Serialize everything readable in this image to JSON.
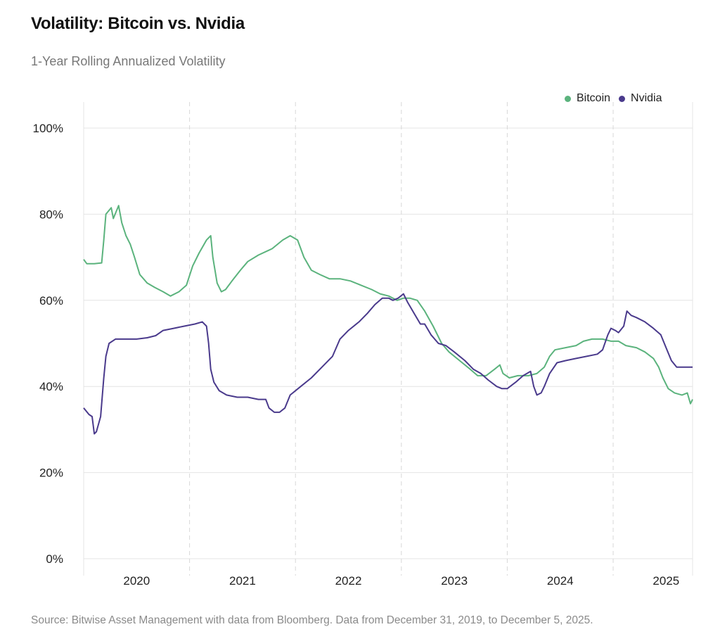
{
  "title": "Volatility: Bitcoin vs. Nvidia",
  "subtitle": "1-Year Rolling Annualized Volatility",
  "source": "Source: Bitwise Asset Management with data from Bloomberg. Data from December 31, 2019, to December 5, 2025.",
  "colors": {
    "bitcoin": "#5bb37d",
    "nvidia": "#4a3a8c",
    "grid": "#e4e4e4",
    "year_grid": "#d8d8d8"
  },
  "chart_data": {
    "type": "line",
    "title": "Volatility: Bitcoin vs. Nvidia",
    "subtitle": "1-Year Rolling Annualized Volatility",
    "xlabel": "",
    "ylabel": "",
    "ylim": [
      0,
      100
    ],
    "xlim": [
      2019.5,
      2025.25
    ],
    "y_ticks": [
      0,
      20,
      40,
      60,
      80,
      100
    ],
    "y_tick_labels": [
      "0%",
      "20%",
      "40%",
      "60%",
      "80%",
      "100%"
    ],
    "year_boundaries": [
      2020.5,
      2021.5,
      2022.5,
      2023.5,
      2024.5
    ],
    "x_ticks": [
      2020,
      2021,
      2022,
      2023,
      2024,
      2025
    ],
    "x_tick_labels": [
      "2020",
      "2021",
      "2022",
      "2023",
      "2024",
      "2025"
    ],
    "legend_position": "top-right",
    "series": [
      {
        "name": "Bitcoin",
        "color": "#5bb37d",
        "points": [
          [
            2019.5,
            69.5
          ],
          [
            2019.53,
            68.5
          ],
          [
            2019.6,
            68.5
          ],
          [
            2019.67,
            68.7
          ],
          [
            2019.69,
            74
          ],
          [
            2019.71,
            80
          ],
          [
            2019.76,
            81.5
          ],
          [
            2019.78,
            79
          ],
          [
            2019.83,
            82
          ],
          [
            2019.86,
            78
          ],
          [
            2019.9,
            75
          ],
          [
            2019.94,
            73
          ],
          [
            2019.98,
            70
          ],
          [
            2020.03,
            66
          ],
          [
            2020.1,
            64
          ],
          [
            2020.17,
            63
          ],
          [
            2020.25,
            62
          ],
          [
            2020.32,
            61
          ],
          [
            2020.4,
            62
          ],
          [
            2020.47,
            63.5
          ],
          [
            2020.53,
            68
          ],
          [
            2020.59,
            71
          ],
          [
            2020.66,
            74
          ],
          [
            2020.7,
            75
          ],
          [
            2020.72,
            70
          ],
          [
            2020.76,
            64
          ],
          [
            2020.8,
            62
          ],
          [
            2020.84,
            62.5
          ],
          [
            2020.9,
            64.5
          ],
          [
            2020.98,
            67
          ],
          [
            2021.05,
            69
          ],
          [
            2021.15,
            70.5
          ],
          [
            2021.28,
            72
          ],
          [
            2021.38,
            74
          ],
          [
            2021.45,
            75
          ],
          [
            2021.52,
            74
          ],
          [
            2021.58,
            70
          ],
          [
            2021.65,
            67
          ],
          [
            2021.73,
            66
          ],
          [
            2021.82,
            65
          ],
          [
            2021.92,
            65
          ],
          [
            2022.02,
            64.5
          ],
          [
            2022.12,
            63.5
          ],
          [
            2022.22,
            62.5
          ],
          [
            2022.3,
            61.5
          ],
          [
            2022.38,
            61
          ],
          [
            2022.46,
            60
          ],
          [
            2022.52,
            60.5
          ],
          [
            2022.58,
            60.5
          ],
          [
            2022.65,
            60
          ],
          [
            2022.72,
            57.5
          ],
          [
            2022.8,
            54
          ],
          [
            2022.88,
            50
          ],
          [
            2022.95,
            48
          ],
          [
            2023.05,
            46
          ],
          [
            2023.15,
            44
          ],
          [
            2023.22,
            42.5
          ],
          [
            2023.3,
            42.5
          ],
          [
            2023.38,
            44
          ],
          [
            2023.43,
            45
          ],
          [
            2023.46,
            43
          ],
          [
            2023.52,
            42
          ],
          [
            2023.6,
            42.5
          ],
          [
            2023.7,
            42.5
          ],
          [
            2023.78,
            43
          ],
          [
            2023.85,
            44.5
          ],
          [
            2023.9,
            47
          ],
          [
            2023.95,
            48.5
          ],
          [
            2024.05,
            49
          ],
          [
            2024.15,
            49.5
          ],
          [
            2024.22,
            50.5
          ],
          [
            2024.3,
            51
          ],
          [
            2024.4,
            51
          ],
          [
            2024.48,
            50.5
          ],
          [
            2024.55,
            50.5
          ],
          [
            2024.62,
            49.5
          ],
          [
            2024.72,
            49
          ],
          [
            2024.8,
            48
          ],
          [
            2024.88,
            46.5
          ],
          [
            2024.93,
            44.5
          ],
          [
            2024.97,
            42
          ],
          [
            2025.02,
            39.5
          ],
          [
            2025.08,
            38.5
          ],
          [
            2025.15,
            38
          ],
          [
            2025.2,
            38.5
          ],
          [
            2025.23,
            36
          ],
          [
            2025.25,
            37
          ]
        ]
      },
      {
        "name": "Nvidia",
        "color": "#4a3a8c",
        "points": [
          [
            2019.5,
            35
          ],
          [
            2019.55,
            33.5
          ],
          [
            2019.58,
            33
          ],
          [
            2019.6,
            29
          ],
          [
            2019.62,
            29.5
          ],
          [
            2019.66,
            33
          ],
          [
            2019.69,
            42
          ],
          [
            2019.71,
            47
          ],
          [
            2019.74,
            50
          ],
          [
            2019.8,
            51
          ],
          [
            2019.9,
            51
          ],
          [
            2020.0,
            51
          ],
          [
            2020.1,
            51.3
          ],
          [
            2020.18,
            51.8
          ],
          [
            2020.25,
            53
          ],
          [
            2020.35,
            53.5
          ],
          [
            2020.45,
            54
          ],
          [
            2020.55,
            54.5
          ],
          [
            2020.62,
            55
          ],
          [
            2020.66,
            54
          ],
          [
            2020.68,
            50
          ],
          [
            2020.7,
            44
          ],
          [
            2020.73,
            41
          ],
          [
            2020.78,
            39
          ],
          [
            2020.85,
            38
          ],
          [
            2020.95,
            37.5
          ],
          [
            2021.05,
            37.5
          ],
          [
            2021.15,
            37
          ],
          [
            2021.22,
            37
          ],
          [
            2021.25,
            35
          ],
          [
            2021.3,
            34
          ],
          [
            2021.35,
            34
          ],
          [
            2021.4,
            35
          ],
          [
            2021.45,
            38
          ],
          [
            2021.55,
            40
          ],
          [
            2021.65,
            42
          ],
          [
            2021.75,
            44.5
          ],
          [
            2021.85,
            47
          ],
          [
            2021.92,
            51
          ],
          [
            2022.0,
            53
          ],
          [
            2022.1,
            55
          ],
          [
            2022.18,
            57
          ],
          [
            2022.25,
            59
          ],
          [
            2022.32,
            60.5
          ],
          [
            2022.38,
            60.5
          ],
          [
            2022.42,
            60
          ],
          [
            2022.47,
            60.5
          ],
          [
            2022.52,
            61.5
          ],
          [
            2022.56,
            59.5
          ],
          [
            2022.62,
            57
          ],
          [
            2022.68,
            54.5
          ],
          [
            2022.72,
            54.5
          ],
          [
            2022.78,
            52
          ],
          [
            2022.85,
            50
          ],
          [
            2022.92,
            49.5
          ],
          [
            2023.0,
            48
          ],
          [
            2023.1,
            46
          ],
          [
            2023.18,
            44
          ],
          [
            2023.25,
            43
          ],
          [
            2023.32,
            41.5
          ],
          [
            2023.4,
            40
          ],
          [
            2023.45,
            39.5
          ],
          [
            2023.5,
            39.5
          ],
          [
            2023.58,
            41
          ],
          [
            2023.65,
            42.5
          ],
          [
            2023.72,
            43.5
          ],
          [
            2023.75,
            40
          ],
          [
            2023.78,
            38
          ],
          [
            2023.82,
            38.5
          ],
          [
            2023.85,
            40
          ],
          [
            2023.9,
            43
          ],
          [
            2023.97,
            45.5
          ],
          [
            2024.05,
            46
          ],
          [
            2024.15,
            46.5
          ],
          [
            2024.25,
            47
          ],
          [
            2024.35,
            47.5
          ],
          [
            2024.4,
            48.5
          ],
          [
            2024.45,
            52
          ],
          [
            2024.48,
            53.5
          ],
          [
            2024.52,
            53
          ],
          [
            2024.55,
            52.5
          ],
          [
            2024.6,
            54
          ],
          [
            2024.63,
            57.5
          ],
          [
            2024.67,
            56.5
          ],
          [
            2024.72,
            56
          ],
          [
            2024.8,
            55
          ],
          [
            2024.88,
            53.5
          ],
          [
            2024.95,
            52
          ],
          [
            2025.0,
            49
          ],
          [
            2025.05,
            46
          ],
          [
            2025.1,
            44.5
          ],
          [
            2025.18,
            44.5
          ],
          [
            2025.25,
            44.5
          ]
        ]
      }
    ]
  }
}
